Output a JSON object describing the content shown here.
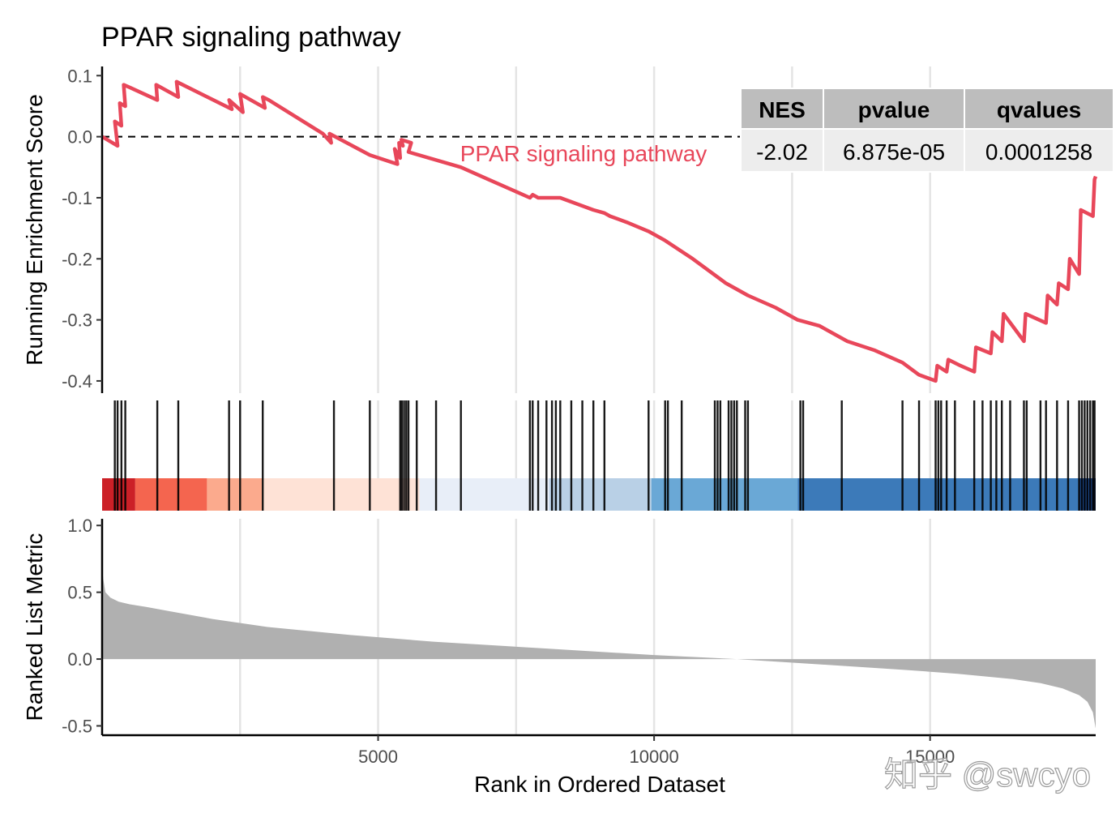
{
  "chart_data": [
    {
      "type": "line",
      "panel": "running-enrichment-score",
      "title": "PPAR signaling pathway",
      "xlabel": "",
      "ylabel": "Running Enrichment Score",
      "xlim": [
        0,
        18000
      ],
      "ylim": [
        -0.42,
        0.115
      ],
      "yticks": [
        0.1,
        0.0,
        -0.1,
        -0.2,
        -0.3,
        -0.4
      ],
      "ytick_labels": [
        "0.1",
        "0.0",
        "-0.1",
        "-0.2",
        "-0.3",
        "-0.4"
      ],
      "xgrid": [
        2500,
        5000,
        7500,
        10000,
        12500,
        15000
      ],
      "reference_line": 0,
      "series": [
        {
          "name": "PPAR signaling pathway",
          "color": "#E8475A",
          "x": [
            0,
            280,
            230,
            350,
            320,
            420,
            390,
            520,
            1000,
            980,
            1380,
            1350,
            2350,
            2300,
            2550,
            2500,
            2950,
            2910,
            3020,
            4000,
            4150,
            4120,
            4850,
            5350,
            5300,
            5400,
            5380,
            5450,
            5420,
            5600,
            5550,
            6500,
            7000,
            7750,
            7800,
            7900,
            8200,
            8300,
            8900,
            9100,
            9200,
            9500,
            9900,
            10200,
            10700,
            11300,
            11700,
            12200,
            12600,
            13000,
            13500,
            14000,
            14500,
            14800,
            15100,
            15130,
            15300,
            15330,
            15550,
            15800,
            15830,
            16100,
            16130,
            16300,
            16330,
            16700,
            16730,
            17100,
            17130,
            17300,
            17330,
            17500,
            17530,
            17700,
            17730,
            17950,
            17980,
            18000
          ],
          "values": [
            0.0,
            -0.015,
            0.025,
            0.018,
            0.055,
            0.05,
            0.085,
            0.08,
            0.06,
            0.085,
            0.065,
            0.09,
            0.045,
            0.06,
            0.04,
            0.07,
            0.047,
            0.065,
            0.06,
            0.005,
            -0.01,
            0.005,
            -0.03,
            -0.045,
            -0.02,
            -0.035,
            -0.01,
            -0.015,
            -0.005,
            -0.01,
            -0.025,
            -0.05,
            -0.07,
            -0.1,
            -0.095,
            -0.1,
            -0.1,
            -0.1,
            -0.12,
            -0.125,
            -0.13,
            -0.14,
            -0.155,
            -0.17,
            -0.2,
            -0.24,
            -0.26,
            -0.28,
            -0.3,
            -0.31,
            -0.335,
            -0.35,
            -0.37,
            -0.39,
            -0.4,
            -0.375,
            -0.385,
            -0.365,
            -0.375,
            -0.385,
            -0.345,
            -0.355,
            -0.32,
            -0.335,
            -0.29,
            -0.335,
            -0.29,
            -0.305,
            -0.26,
            -0.275,
            -0.24,
            -0.25,
            -0.2,
            -0.225,
            -0.12,
            -0.13,
            -0.07,
            -0.065
          ]
        }
      ],
      "annotations": [
        {
          "text": "PPAR signaling pathway",
          "x": 11400,
          "y": -0.03,
          "color": "#E8475A"
        }
      ],
      "stats_table": {
        "headers": [
          "NES",
          "pvalue",
          "qvalues"
        ],
        "row": [
          "-2.02",
          "6.875e-05",
          "0.0001258"
        ]
      }
    },
    {
      "type": "barcode",
      "panel": "gene-hits",
      "xlim": [
        0,
        18000
      ],
      "hit_positions": [
        230,
        280,
        350,
        420,
        1000,
        1380,
        2300,
        2500,
        2910,
        4200,
        4850,
        5400,
        5430,
        5470,
        5510,
        5550,
        5700,
        6050,
        6500,
        7750,
        7800,
        7900,
        8050,
        8150,
        8220,
        8300,
        8500,
        8700,
        8900,
        9100,
        9900,
        10200,
        10250,
        10500,
        11100,
        11150,
        11200,
        11350,
        11400,
        11450,
        11500,
        11650,
        11700,
        12650,
        12700,
        13400,
        14500,
        14800,
        15100,
        15150,
        15200,
        15300,
        15450,
        15800,
        15950,
        16100,
        16200,
        16300,
        16450,
        16700,
        16750,
        17000,
        17100,
        17300,
        17500,
        17700,
        17750,
        17800,
        17850,
        17900,
        17950,
        17980
      ],
      "color_bands": [
        {
          "from": 0,
          "to": 600,
          "color": "#CC2027"
        },
        {
          "from": 600,
          "to": 1900,
          "color": "#F4654F"
        },
        {
          "from": 1900,
          "to": 2900,
          "color": "#FBAA8D"
        },
        {
          "from": 2900,
          "to": 5750,
          "color": "#FEE2D6"
        },
        {
          "from": 5750,
          "to": 8100,
          "color": "#E8EEF8"
        },
        {
          "from": 8100,
          "to": 9950,
          "color": "#B9D0E6"
        },
        {
          "from": 9950,
          "to": 12600,
          "color": "#6AA8D6"
        },
        {
          "from": 12600,
          "to": 17700,
          "color": "#3C7AB9"
        },
        {
          "from": 17700,
          "to": 18000,
          "color": "#1F4E94"
        }
      ]
    },
    {
      "type": "area",
      "panel": "ranked-list-metric",
      "xlabel": "Rank in Ordered Dataset",
      "ylabel": "Ranked List Metric",
      "xlim": [
        0,
        18000
      ],
      "ylim": [
        -0.57,
        1.05
      ],
      "xticks": [
        5000,
        10000,
        15000
      ],
      "xtick_labels": [
        "5000",
        "10000",
        "15000"
      ],
      "yticks": [
        1.0,
        0.5,
        0.0,
        -0.5
      ],
      "ytick_labels": [
        "1.0",
        "0.5",
        "0.0",
        "-0.5"
      ],
      "fill_color": "#B0B0B0",
      "x": [
        0,
        20,
        60,
        150,
        300,
        500,
        800,
        1200,
        2000,
        3000,
        4500,
        6000,
        8000,
        10000,
        11500,
        13000,
        14500,
        15500,
        16500,
        17000,
        17400,
        17700,
        17850,
        17950,
        18000
      ],
      "values": [
        0.7,
        0.6,
        0.5,
        0.46,
        0.43,
        0.41,
        0.39,
        0.36,
        0.3,
        0.24,
        0.18,
        0.13,
        0.08,
        0.03,
        0.0,
        -0.04,
        -0.08,
        -0.11,
        -0.15,
        -0.18,
        -0.22,
        -0.27,
        -0.32,
        -0.4,
        -0.52
      ]
    }
  ],
  "watermark": "知乎 @swcyo"
}
